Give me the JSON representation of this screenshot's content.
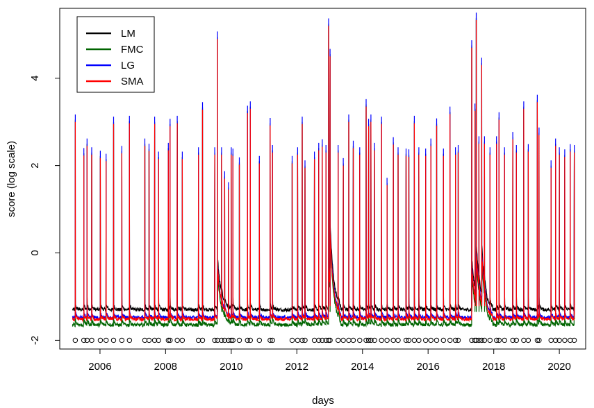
{
  "chart_data": {
    "type": "line",
    "xlabel": "days",
    "ylabel": "score (log scale)",
    "x_range": [
      "2004-10-10",
      "2020-10-20"
    ],
    "ylim": [
      -2.2,
      5.6
    ],
    "x_ticks": [
      "2006",
      "2008",
      "2010",
      "2012",
      "2014",
      "2016",
      "2018",
      "2020"
    ],
    "y_ticks": [
      -2,
      0,
      2,
      4
    ],
    "grid": false,
    "legend_position": "top-left",
    "series": [
      {
        "name": "LM",
        "color": "#000000",
        "baseline": -1.3
      },
      {
        "name": "FMC",
        "color": "#006400",
        "baseline": -1.65
      },
      {
        "name": "LG",
        "color": "#0000ff",
        "baseline": -1.48
      },
      {
        "name": "SMA",
        "color": "#ff0000",
        "baseline": -1.52
      }
    ],
    "spikes": [
      [
        "2005-04-01",
        3.05
      ],
      [
        "2005-07-05",
        2.28
      ],
      [
        "2005-08-10",
        2.5
      ],
      [
        "2005-10-01",
        2.3
      ],
      [
        "2006-01-05",
        2.22
      ],
      [
        "2006-03-10",
        2.15
      ],
      [
        "2006-06-01",
        3.0
      ],
      [
        "2006-09-01",
        2.33
      ],
      [
        "2006-11-25",
        3.02
      ],
      [
        "2007-05-15",
        2.5
      ],
      [
        "2007-07-01",
        2.38
      ],
      [
        "2007-09-01",
        3.0
      ],
      [
        "2007-10-15",
        2.2
      ],
      [
        "2008-02-01",
        2.4
      ],
      [
        "2008-02-20",
        2.95
      ],
      [
        "2008-05-10",
        3.02
      ],
      [
        "2008-07-05",
        2.2
      ],
      [
        "2009-01-01",
        2.3
      ],
      [
        "2009-02-15",
        3.33
      ],
      [
        "2009-07-01",
        2.3
      ],
      [
        "2009-08-01",
        4.95
      ],
      [
        "2009-09-15",
        2.3
      ],
      [
        "2009-10-20",
        1.75
      ],
      [
        "2009-12-01",
        1.5
      ],
      [
        "2010-01-01",
        2.3
      ],
      [
        "2010-01-20",
        2.27
      ],
      [
        "2010-04-01",
        2.07
      ],
      [
        "2010-07-01",
        3.25
      ],
      [
        "2010-08-01",
        3.35
      ],
      [
        "2010-11-10",
        2.1
      ],
      [
        "2011-03-10",
        2.97
      ],
      [
        "2011-04-05",
        2.35
      ],
      [
        "2011-11-10",
        2.1
      ],
      [
        "2012-01-10",
        2.3
      ],
      [
        "2012-03-01",
        3.0
      ],
      [
        "2012-04-01",
        2.0
      ],
      [
        "2012-07-15",
        2.2
      ],
      [
        "2012-09-01",
        2.4
      ],
      [
        "2012-10-10",
        2.48
      ],
      [
        "2012-11-20",
        2.35
      ],
      [
        "2012-12-20",
        5.25
      ],
      [
        "2013-01-05",
        4.55
      ],
      [
        "2013-04-05",
        2.35
      ],
      [
        "2013-06-01",
        2.05
      ],
      [
        "2013-08-01",
        3.05
      ],
      [
        "2013-09-20",
        2.45
      ],
      [
        "2013-12-01",
        2.3
      ],
      [
        "2014-02-10",
        3.4
      ],
      [
        "2014-03-10",
        2.95
      ],
      [
        "2014-04-05",
        3.05
      ],
      [
        "2014-05-15",
        2.4
      ],
      [
        "2014-08-01",
        3.0
      ],
      [
        "2014-10-01",
        1.6
      ],
      [
        "2014-12-10",
        2.53
      ],
      [
        "2015-02-01",
        2.3
      ],
      [
        "2015-05-01",
        2.27
      ],
      [
        "2015-06-01",
        2.25
      ],
      [
        "2015-08-01",
        3.02
      ],
      [
        "2015-09-20",
        2.3
      ],
      [
        "2015-12-05",
        2.27
      ],
      [
        "2016-02-01",
        2.5
      ],
      [
        "2016-04-05",
        2.96
      ],
      [
        "2016-06-20",
        2.27
      ],
      [
        "2016-09-01",
        3.23
      ],
      [
        "2016-11-01",
        2.3
      ],
      [
        "2016-12-01",
        2.35
      ],
      [
        "2017-05-01",
        4.75
      ],
      [
        "2017-06-05",
        3.3
      ],
      [
        "2017-06-20",
        5.38
      ],
      [
        "2017-07-20",
        2.55
      ],
      [
        "2017-08-20",
        4.35
      ],
      [
        "2017-09-20",
        2.55
      ],
      [
        "2017-11-20",
        2.3
      ],
      [
        "2018-02-01",
        2.55
      ],
      [
        "2018-03-01",
        3.1
      ],
      [
        "2018-05-01",
        2.3
      ],
      [
        "2018-08-01",
        2.65
      ],
      [
        "2018-09-10",
        2.35
      ],
      [
        "2018-12-01",
        3.35
      ],
      [
        "2019-01-20",
        2.37
      ],
      [
        "2019-05-01",
        3.5
      ],
      [
        "2019-05-20",
        2.75
      ],
      [
        "2019-10-01",
        2.0
      ],
      [
        "2019-11-20",
        2.5
      ],
      [
        "2020-01-01",
        2.3
      ],
      [
        "2020-03-01",
        2.25
      ],
      [
        "2020-05-01",
        2.37
      ],
      [
        "2020-06-15",
        2.35
      ]
    ]
  }
}
